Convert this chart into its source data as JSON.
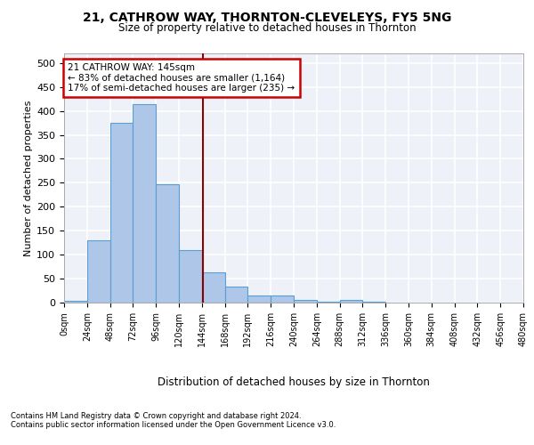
{
  "title1": "21, CATHROW WAY, THORNTON-CLEVELEYS, FY5 5NG",
  "title2": "Size of property relative to detached houses in Thornton",
  "xlabel": "Distribution of detached houses by size in Thornton",
  "ylabel": "Number of detached properties",
  "bar_color": "#aec6e8",
  "bar_edge_color": "#5a9fd4",
  "background_color": "#eef2f8",
  "grid_color": "#ffffff",
  "bin_edges": [
    0,
    24,
    48,
    72,
    96,
    120,
    144,
    168,
    192,
    216,
    240,
    264,
    288,
    312,
    336,
    360,
    384,
    408,
    432,
    456,
    480
  ],
  "bar_heights": [
    3,
    130,
    375,
    415,
    247,
    110,
    63,
    33,
    15,
    15,
    6,
    2,
    5,
    2,
    0,
    0,
    0,
    0,
    0,
    0
  ],
  "property_size": 145,
  "vline_color": "#8b0000",
  "annotation_line1": "21 CATHROW WAY: 145sqm",
  "annotation_line2": "← 83% of detached houses are smaller (1,164)",
  "annotation_line3": "17% of semi-detached houses are larger (235) →",
  "annotation_box_color": "#ffffff",
  "annotation_box_edge": "#cc0000",
  "tick_labels": [
    "0sqm",
    "24sqm",
    "48sqm",
    "72sqm",
    "96sqm",
    "120sqm",
    "144sqm",
    "168sqm",
    "192sqm",
    "216sqm",
    "240sqm",
    "264sqm",
    "288sqm",
    "312sqm",
    "336sqm",
    "360sqm",
    "384sqm",
    "408sqm",
    "432sqm",
    "456sqm",
    "480sqm"
  ],
  "footer1": "Contains HM Land Registry data © Crown copyright and database right 2024.",
  "footer2": "Contains public sector information licensed under the Open Government Licence v3.0.",
  "ylim": [
    0,
    520
  ],
  "yticks": [
    0,
    50,
    100,
    150,
    200,
    250,
    300,
    350,
    400,
    450,
    500
  ]
}
